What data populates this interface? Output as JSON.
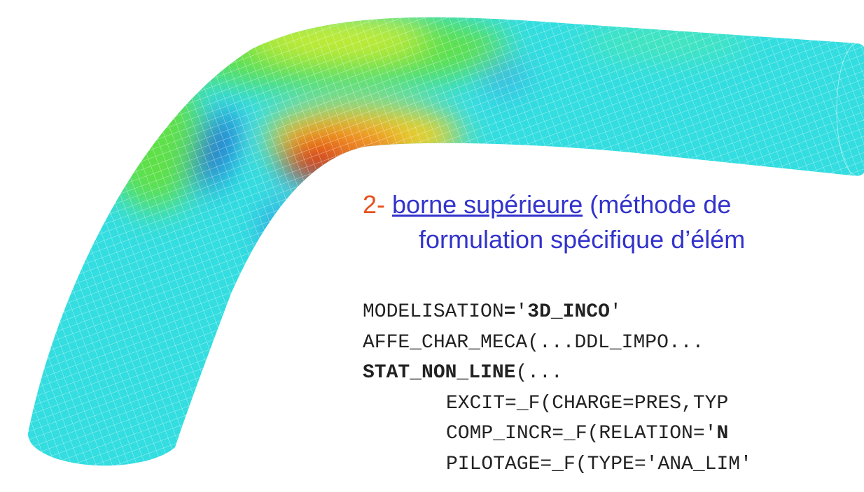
{
  "heading": {
    "number": "2-",
    "link": "borne supérieure",
    "rest": "(méthode de",
    "line2": "formulation spécifique d’élém"
  },
  "code": [
    [
      {
        "text": "MODELISATION",
        "bold": false
      },
      {
        "text": "=",
        "bold": true
      },
      {
        "text": "'",
        "bold": false
      },
      {
        "text": "3D_INCO",
        "bold": true
      },
      {
        "text": "'",
        "bold": false
      }
    ],
    [
      {
        "text": "AFFE_CHAR_MECA(...DDL_IMPO...",
        "bold": false
      }
    ],
    [
      {
        "text": "STAT_NON_LINE",
        "bold": true
      },
      {
        "text": "(...",
        "bold": false
      }
    ],
    [
      {
        "text": "EXCIT=_F(CHARGE=PRES,TYP",
        "bold": false
      }
    ],
    [
      {
        "text": "COMP_INCR=_F(RELATION='",
        "bold": false
      },
      {
        "text": "N",
        "bold": true
      }
    ],
    [
      {
        "text": "PILOTAGE=_F(TYPE='ANA_LIM'",
        "bold": false
      }
    ]
  ]
}
